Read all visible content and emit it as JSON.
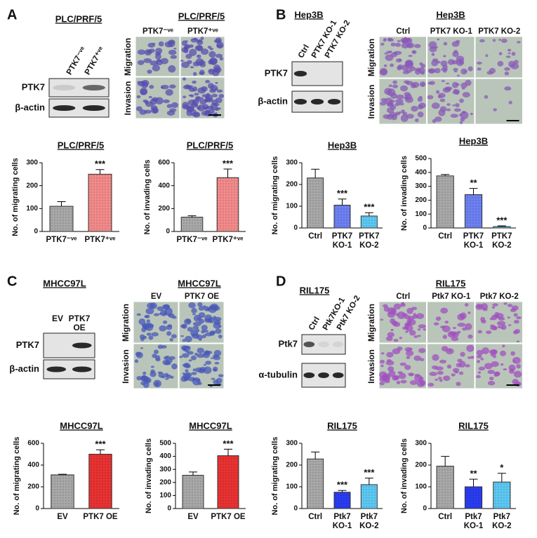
{
  "panels": [
    {
      "letter": "A",
      "blot": {
        "title": "PLC/PRF/5",
        "lanes": [
          "PTK7⁻ᵛᵉ",
          "PTK7⁺ᵛᵉ"
        ],
        "proteins": [
          "PTK7",
          "β-actin"
        ]
      },
      "images": {
        "title": "PLC/PRF/5",
        "columns": [
          "PTK7⁻ᵛᵉ",
          "PTK7⁺ᵛᵉ"
        ],
        "rows": [
          "Migration",
          "Invasion"
        ]
      }
    },
    {
      "letter": "B",
      "blot": {
        "title": "Hep3B",
        "lanes": [
          "Ctrl",
          "PTK7 KO-1",
          "PTK7 KO-2"
        ],
        "proteins": [
          "PTK7",
          "β-actin"
        ]
      },
      "images": {
        "title": "Hep3B",
        "columns": [
          "Ctrl",
          "PTK7 KO-1",
          "PTK7 KO-2"
        ],
        "rows": [
          "Migration",
          "Invasion"
        ]
      }
    },
    {
      "letter": "C",
      "blot": {
        "title": "MHCC97L",
        "lanes": [
          "EV",
          "PTK7 OE"
        ],
        "proteins": [
          "PTK7",
          "β-actin"
        ]
      },
      "images": {
        "title": "MHCC97L",
        "columns": [
          "EV",
          "PTK7 OE"
        ],
        "rows": [
          "Migration",
          "Invasion"
        ]
      }
    },
    {
      "letter": "D",
      "blot": {
        "title": "RIL175",
        "lanes": [
          "Ctrl",
          "Ptk7KO-1",
          "Ptk7 KO-2"
        ],
        "proteins": [
          "Ptk7",
          "α-tubulin"
        ]
      },
      "images": {
        "title": "RIL175",
        "columns": [
          "Ctrl",
          "Ptk7 KO-1",
          "Ptk7 KO-2"
        ],
        "rows": [
          "Migration",
          "Invasion"
        ]
      }
    }
  ],
  "chart_data": [
    {
      "type": "bar",
      "title": "PLC/PRF/5",
      "y_label": "No. of migrating cells",
      "categories": [
        "PTK7⁻ᵛᵉ",
        "PTK7⁺ᵛᵉ"
      ],
      "values": [
        110,
        250
      ],
      "errors": [
        20,
        20
      ],
      "colors": [
        "#a8a8a8",
        "#f28a8a"
      ],
      "annotations": [
        null,
        "***"
      ],
      "ylim": [
        0,
        300
      ],
      "yticks": [
        0,
        100,
        200,
        300
      ]
    },
    {
      "type": "bar",
      "title": "PLC/PRF/5",
      "y_label": "No. of invading cells",
      "categories": [
        "PTK7⁻ᵛᵉ",
        "PTK7⁺ᵛᵉ"
      ],
      "values": [
        125,
        470
      ],
      "errors": [
        12,
        75
      ],
      "colors": [
        "#a8a8a8",
        "#f28a8a"
      ],
      "annotations": [
        null,
        "***"
      ],
      "ylim": [
        0,
        600
      ],
      "yticks": [
        0,
        200,
        400,
        600
      ]
    },
    {
      "type": "bar",
      "title": "Hep3B",
      "y_label": "No. of migrating cells",
      "categories": [
        "Ctrl",
        "PTK7 KO-1",
        "PTK7 KO-2"
      ],
      "values": [
        230,
        105,
        55
      ],
      "errors": [
        40,
        28,
        15
      ],
      "colors": [
        "#a8a8a8",
        "#6c80f2",
        "#5cc8f2"
      ],
      "annotations": [
        null,
        "***",
        "***"
      ],
      "ylim": [
        0,
        300
      ],
      "yticks": [
        0,
        100,
        200,
        300
      ]
    },
    {
      "type": "bar",
      "title": "Hep3B",
      "y_label": "No. of invading cells",
      "categories": [
        "Ctrl",
        "PTK7 KO-1",
        "PTK7 KO-2"
      ],
      "values": [
        375,
        240,
        10
      ],
      "errors": [
        10,
        45,
        5
      ],
      "colors": [
        "#a8a8a8",
        "#6c80f2",
        "#5cc8f2"
      ],
      "annotations": [
        null,
        "**",
        "***"
      ],
      "ylim": [
        0,
        500
      ],
      "yticks": [
        0,
        100,
        200,
        300,
        400,
        500
      ]
    },
    {
      "type": "bar",
      "title": "MHCC97L",
      "y_label": "No. of migrating cells",
      "categories": [
        "EV",
        "PTK7 OE"
      ],
      "values": [
        310,
        500
      ],
      "errors": [
        5,
        40
      ],
      "colors": [
        "#a8a8a8",
        "#e83232"
      ],
      "annotations": [
        null,
        "***"
      ],
      "ylim": [
        0,
        600
      ],
      "yticks": [
        0,
        200,
        400,
        600
      ]
    },
    {
      "type": "bar",
      "title": "MHCC97L",
      "y_label": "No. of invading cells",
      "categories": [
        "EV",
        "PTK7 OE"
      ],
      "values": [
        255,
        405
      ],
      "errors": [
        25,
        50
      ],
      "colors": [
        "#a8a8a8",
        "#e83232"
      ],
      "annotations": [
        null,
        "***"
      ],
      "ylim": [
        0,
        500
      ],
      "yticks": [
        0,
        100,
        200,
        300,
        400,
        500
      ]
    },
    {
      "type": "bar",
      "title": "RIL175",
      "y_label": "No. of migrating cells",
      "categories": [
        "Ctrl",
        "Ptk7 KO-1",
        "Ptk7 KO-2"
      ],
      "values": [
        228,
        75,
        110
      ],
      "errors": [
        32,
        8,
        30
      ],
      "colors": [
        "#a8a8a8",
        "#2a3cf0",
        "#5cc8f2"
      ],
      "annotations": [
        null,
        "***",
        "***"
      ],
      "ylim": [
        0,
        300
      ],
      "yticks": [
        0,
        100,
        200,
        300
      ]
    },
    {
      "type": "bar",
      "title": "RIL175",
      "y_label": "No. of invading cells",
      "categories": [
        "Ctrl",
        "Ptk7 KO-1",
        "Ptk7 KO-2"
      ],
      "values": [
        195,
        100,
        122
      ],
      "errors": [
        45,
        35,
        40
      ],
      "colors": [
        "#a8a8a8",
        "#2a3cf0",
        "#5cc8f2"
      ],
      "annotations": [
        null,
        "**",
        "*"
      ],
      "ylim": [
        0,
        300
      ],
      "yticks": [
        0,
        100,
        200,
        300
      ]
    }
  ]
}
